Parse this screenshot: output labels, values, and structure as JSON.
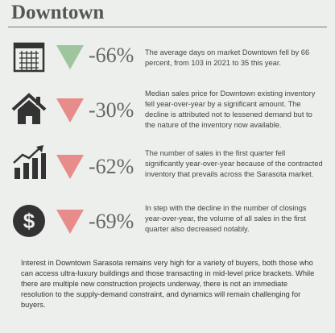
{
  "header": {
    "title": "Downtown"
  },
  "items": [
    {
      "change": "-66%",
      "text": "The average days on market Downtown fell by 66 percent, from 103 in 2021 to 35 this year."
    },
    {
      "change": "-30%",
      "text": "Median sales price for Downtown existing inventory fell year-over-year by a significant amount. The decline is attributed not to lessened demand but to the nature of the inventory now available."
    },
    {
      "change": "-62%",
      "text": "The number of sales in the first quarter fell significantly year-over-year because of the contracted inventory that prevails across the Sarasota market."
    },
    {
      "change": "-69%",
      "text": "In step with the decline in the number of closings year-over-year, the volume of all sales in the first quarter also decreased notably."
    }
  ],
  "footer": {
    "text": "Interest in Downtown Sarasota remains very high for a variety of buyers, both those who can access ultra-luxury buildings and those transacting in mid-level price brackets. While there are multiple new construction projects underway, there is not an immediate resolution to the supply-demand constraint, and dynamics will remain challenging for buyers."
  }
}
